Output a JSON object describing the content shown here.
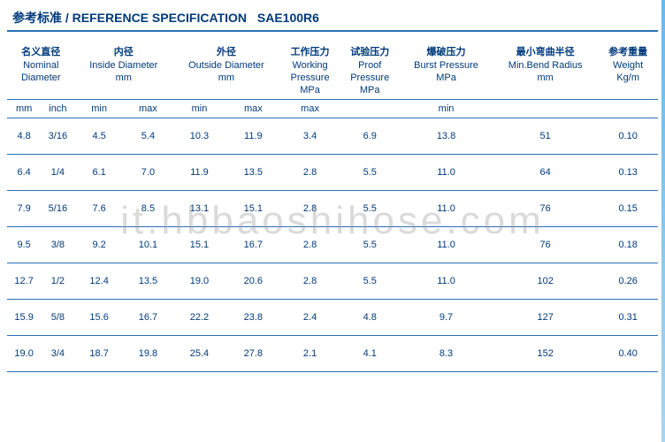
{
  "title": {
    "cn": "参考标准 /",
    "en": "REFERENCE SPECIFICATION",
    "spec": "SAE100R6"
  },
  "watermark": "it.hbbaoshihose.com",
  "headers": {
    "nominal": {
      "cn": "名义直径",
      "en": "Nominal",
      "en2": "Diameter",
      "u_mm": "mm",
      "u_in": "inch"
    },
    "inside": {
      "cn": "内径",
      "en": "Inside  Diameter",
      "unit": "mm",
      "min": "min",
      "max": "max"
    },
    "outside": {
      "cn": "外径",
      "en": "Outside Diameter",
      "unit": "mm",
      "min": "min",
      "max": "max"
    },
    "working": {
      "cn": "工作压力",
      "en": "Working",
      "en2": "Pressure",
      "unit": "MPa",
      "sub": "max"
    },
    "proof": {
      "cn": "试验压力",
      "en": "Proof",
      "en2": "Pressure",
      "unit": "MPa"
    },
    "burst": {
      "cn": "爆破压力",
      "en": "Burst Pressure",
      "unit": "MPa",
      "sub": "min"
    },
    "bend": {
      "cn": "最小弯曲半径",
      "en": "Min.Bend Radius",
      "unit": "mm"
    },
    "weight": {
      "cn": "参考重量",
      "en": "Weight",
      "unit": "Kg/m"
    }
  },
  "rows": [
    {
      "mm": "4.8",
      "inch": "3/16",
      "imin": "4.5",
      "imax": "5.4",
      "omin": "10.3",
      "omax": "11.9",
      "wp": "3.4",
      "pp": "6.9",
      "bp": "13.8",
      "bend": "51",
      "wt": "0.10"
    },
    {
      "mm": "6.4",
      "inch": "1/4",
      "imin": "6.1",
      "imax": "7.0",
      "omin": "11.9",
      "omax": "13.5",
      "wp": "2.8",
      "pp": "5.5",
      "bp": "11.0",
      "bend": "64",
      "wt": "0.13"
    },
    {
      "mm": "7.9",
      "inch": "5/16",
      "imin": "7.6",
      "imax": "8.5",
      "omin": "13.1",
      "omax": "15.1",
      "wp": "2.8",
      "pp": "5.5",
      "bp": "11.0",
      "bend": "76",
      "wt": "0.15"
    },
    {
      "mm": "9.5",
      "inch": "3/8",
      "imin": "9.2",
      "imax": "10.1",
      "omin": "15.1",
      "omax": "16.7",
      "wp": "2.8",
      "pp": "5.5",
      "bp": "11.0",
      "bend": "76",
      "wt": "0.18"
    },
    {
      "mm": "12.7",
      "inch": "1/2",
      "imin": "12.4",
      "imax": "13.5",
      "omin": "19.0",
      "omax": "20.6",
      "wp": "2.8",
      "pp": "5.5",
      "bp": "11.0",
      "bend": "102",
      "wt": "0.26"
    },
    {
      "mm": "15.9",
      "inch": "5/8",
      "imin": "15.6",
      "imax": "16.7",
      "omin": "22.2",
      "omax": "23.8",
      "wp": "2.4",
      "pp": "4.8",
      "bp": "9.7",
      "bend": "127",
      "wt": "0.31"
    },
    {
      "mm": "19.0",
      "inch": "3/4",
      "imin": "18.7",
      "imax": "19.8",
      "omin": "25.4",
      "omax": "27.8",
      "wp": "2.1",
      "pp": "4.1",
      "bp": "8.3",
      "bend": "152",
      "wt": "0.40"
    }
  ]
}
